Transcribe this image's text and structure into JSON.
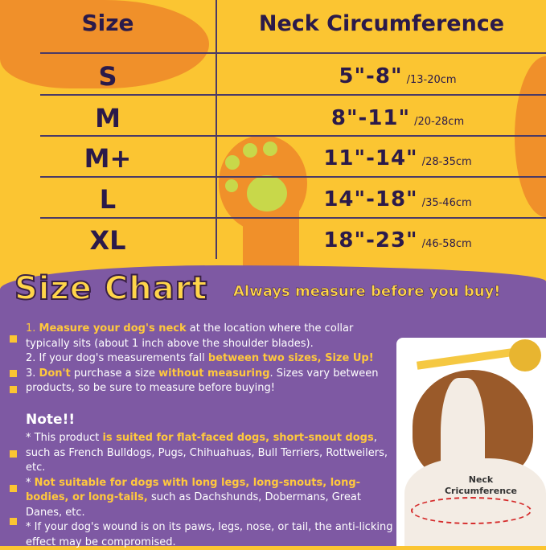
{
  "table": {
    "header_size": "Size",
    "header_neck": "Neck Circumference",
    "rows": [
      {
        "size": "S",
        "inches": "5\"-8\"",
        "cm": "/13-20cm"
      },
      {
        "size": "M",
        "inches": "8\"-11\"",
        "cm": "/20-28cm"
      },
      {
        "size": "M+",
        "inches": "11\"-14\"",
        "cm": "/28-35cm"
      },
      {
        "size": "L",
        "inches": "14\"-18\"",
        "cm": "/35-46cm"
      },
      {
        "size": "XL",
        "inches": "18\"-23\"",
        "cm": "/46-58cm"
      }
    ]
  },
  "title": "Size Chart",
  "tagline": "Always measure before you buy!",
  "steps": {
    "s1_num": "1. ",
    "s1_hl": "Measure your dog's neck",
    "s1_rest": " at the location where the collar typically sits (about 1 inch above the shoulder blades).",
    "s2_pre": "2. If your dog's measurements fall ",
    "s2_hl": "between two sizes, Size Up!",
    "s3_num": "3. ",
    "s3_hl1": "Don't",
    "s3_mid": " purchase a size ",
    "s3_hl2": "without measuring",
    "s3_rest": ". Sizes vary between products, so be sure to measure before buying!"
  },
  "note": {
    "title": "Note!!",
    "n1_pre": "* This product ",
    "n1_hl": "is suited for flat-faced dogs, short-snout dogs",
    "n1_rest": ", such as French Bulldogs, Pugs, Chihuahuas, Bull Terriers, Rottweilers, etc.",
    "n2_pre": "* ",
    "n2_hl": "Not suitable for dogs with long legs, long-snouts, long-bodies, or long-tails,",
    "n2_rest": " such as Dachshunds, Dobermans, Great Danes, etc.",
    "n3": "* If your dog's wound is on its paws, legs, nose, or tail, the anti-licking effect may be compromised."
  },
  "photo_label": "Neck Cricumference",
  "colors": {
    "yellow": "#fbc532",
    "orange": "#f0902a",
    "purple": "#7e59a3",
    "highlight": "#ffc83d",
    "paw_pad": "#c8d84a"
  }
}
